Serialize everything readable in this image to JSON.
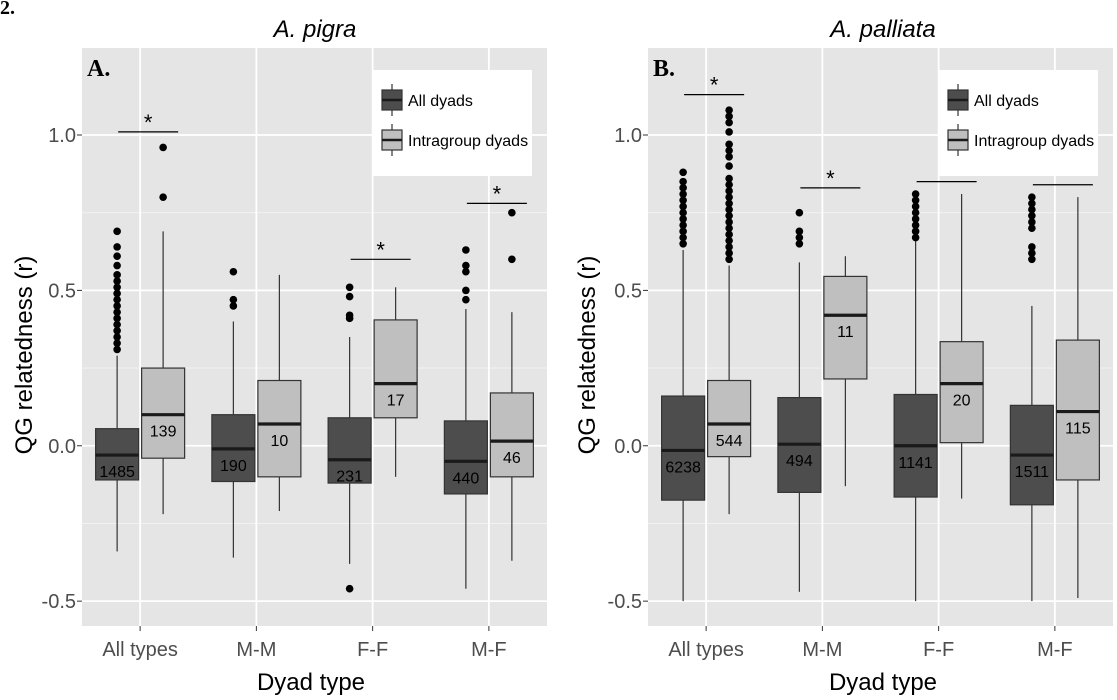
{
  "figure": {
    "figure_label": "2.",
    "y_axis_label": "QG relatedness (r)",
    "x_axis_label": "Dyad type"
  },
  "colors": {
    "panel_background": "#e5e5e5",
    "gridline": "#ffffff",
    "all_dyads_fill": "#4d4d4d",
    "intragroup_fill": "#bfbfbf",
    "outlier": "#000000",
    "text": "#000000"
  },
  "chart_data": [
    {
      "type": "boxplot",
      "panel_letter": "A.",
      "title": "A. pigra",
      "categories": [
        "All types",
        "M-M",
        "F-F",
        "M-F"
      ],
      "ylim": [
        -0.58,
        1.28
      ],
      "yticks": [
        -0.5,
        0.0,
        0.5,
        1.0
      ],
      "ytick_labels": [
        "-0.5",
        "0.0",
        "0.5",
        "1.0"
      ],
      "grid": true,
      "legend": {
        "placement": "top-right",
        "entries": [
          "All dyads",
          "Intragroup dyads"
        ]
      },
      "significance": [
        {
          "category": "All types",
          "y": 1.01,
          "label": "*"
        },
        {
          "category": "M-M",
          "y": null,
          "label": ""
        },
        {
          "category": "F-F",
          "y": 0.6,
          "label": "*"
        },
        {
          "category": "M-F",
          "y": 0.78,
          "label": "*"
        }
      ],
      "series": [
        {
          "name": "All dyads",
          "boxes": [
            {
              "whisker_low": -0.34,
              "q1": -0.11,
              "median": -0.03,
              "q3": 0.055,
              "whisker_high": 0.29,
              "n": "1485",
              "outliers": [
                0.31,
                0.33,
                0.35,
                0.37,
                0.39,
                0.41,
                0.43,
                0.45,
                0.47,
                0.49,
                0.51,
                0.53,
                0.55,
                0.58,
                0.61,
                0.64,
                0.69
              ]
            },
            {
              "whisker_low": -0.36,
              "q1": -0.115,
              "median": -0.01,
              "q3": 0.1,
              "whisker_high": 0.4,
              "n": "190",
              "outliers": [
                0.45,
                0.47,
                0.56
              ]
            },
            {
              "whisker_low": -0.38,
              "q1": -0.12,
              "median": -0.045,
              "q3": 0.09,
              "whisker_high": 0.35,
              "n": "231",
              "outliers": [
                0.41,
                0.42,
                0.48,
                0.51,
                -0.46
              ]
            },
            {
              "whisker_low": -0.46,
              "q1": -0.155,
              "median": -0.05,
              "q3": 0.08,
              "whisker_high": 0.44,
              "n": "440",
              "outliers": [
                0.47,
                0.5,
                0.56,
                0.58,
                0.63
              ]
            }
          ]
        },
        {
          "name": "Intragroup dyads",
          "boxes": [
            {
              "whisker_low": -0.22,
              "q1": -0.04,
              "median": 0.1,
              "q3": 0.25,
              "whisker_high": 0.69,
              "n": "139",
              "outliers": [
                0.8,
                0.96
              ]
            },
            {
              "whisker_low": -0.21,
              "q1": -0.1,
              "median": 0.07,
              "q3": 0.21,
              "whisker_high": 0.55,
              "n": "10",
              "outliers": []
            },
            {
              "whisker_low": -0.1,
              "q1": 0.09,
              "median": 0.2,
              "q3": 0.405,
              "whisker_high": 0.51,
              "n": "17",
              "outliers": []
            },
            {
              "whisker_low": -0.37,
              "q1": -0.1,
              "median": 0.015,
              "q3": 0.17,
              "whisker_high": 0.43,
              "n": "46",
              "outliers": [
                0.6,
                0.75
              ]
            }
          ]
        }
      ]
    },
    {
      "type": "boxplot",
      "panel_letter": "B.",
      "title": "A. palliata",
      "categories": [
        "All types",
        "M-M",
        "F-F",
        "M-F"
      ],
      "ylim": [
        -0.58,
        1.28
      ],
      "yticks": [
        -0.5,
        0.0,
        0.5,
        1.0
      ],
      "ytick_labels": [
        "-0.5",
        "0.0",
        "0.5",
        "1.0"
      ],
      "grid": true,
      "legend": {
        "placement": "top-right",
        "entries": [
          "All dyads",
          "Intragroup dyads"
        ]
      },
      "significance": [
        {
          "category": "All types",
          "y": 1.13,
          "label": "*"
        },
        {
          "category": "M-M",
          "y": 0.83,
          "label": "*"
        },
        {
          "category": "F-F",
          "y": 0.85,
          "label": "*"
        },
        {
          "category": "M-F",
          "y": 0.84,
          "label": "*"
        }
      ],
      "series": [
        {
          "name": "All dyads",
          "boxes": [
            {
              "whisker_low": -0.5,
              "q1": -0.175,
              "median": -0.015,
              "q3": 0.16,
              "whisker_high": 0.63,
              "n": "6238",
              "outliers": [
                0.65,
                0.67,
                0.69,
                0.71,
                0.73,
                0.75,
                0.77,
                0.79,
                0.81,
                0.83,
                0.85,
                0.88
              ]
            },
            {
              "whisker_low": -0.47,
              "q1": -0.15,
              "median": 0.005,
              "q3": 0.155,
              "whisker_high": 0.59,
              "n": "494",
              "outliers": [
                0.65,
                0.67,
                0.69,
                0.75
              ]
            },
            {
              "whisker_low": -0.5,
              "q1": -0.165,
              "median": 0.0,
              "q3": 0.165,
              "whisker_high": 0.66,
              "n": "1141",
              "outliers": [
                0.67,
                0.69,
                0.71,
                0.73,
                0.75,
                0.77,
                0.79,
                0.81
              ]
            },
            {
              "whisker_low": -0.5,
              "q1": -0.19,
              "median": -0.03,
              "q3": 0.13,
              "whisker_high": 0.45,
              "n": "1511",
              "outliers": [
                0.6,
                0.62,
                0.64,
                0.7,
                0.72,
                0.74,
                0.76,
                0.78,
                0.8
              ]
            }
          ]
        },
        {
          "name": "Intragroup dyads",
          "boxes": [
            {
              "whisker_low": -0.22,
              "q1": -0.035,
              "median": 0.07,
              "q3": 0.21,
              "whisker_high": 0.58,
              "n": "544",
              "outliers": [
                0.6,
                0.62,
                0.64,
                0.66,
                0.68,
                0.7,
                0.72,
                0.74,
                0.76,
                0.78,
                0.8,
                0.82,
                0.84,
                0.86,
                0.9,
                0.93,
                0.95,
                0.97,
                1.01,
                1.04,
                1.06,
                1.08
              ]
            },
            {
              "whisker_low": -0.13,
              "q1": 0.215,
              "median": 0.42,
              "q3": 0.545,
              "whisker_high": 0.61,
              "n": "11",
              "outliers": []
            },
            {
              "whisker_low": -0.17,
              "q1": 0.01,
              "median": 0.2,
              "q3": 0.335,
              "whisker_high": 0.81,
              "n": "20",
              "outliers": []
            },
            {
              "whisker_low": -0.49,
              "q1": -0.11,
              "median": 0.11,
              "q3": 0.34,
              "whisker_high": 0.8,
              "n": "115",
              "outliers": []
            }
          ]
        }
      ]
    }
  ]
}
